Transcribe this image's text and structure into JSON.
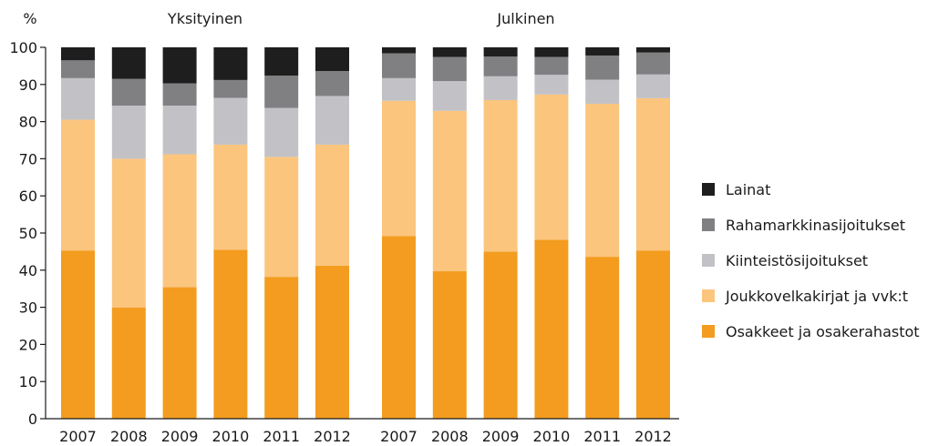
{
  "chart_data": {
    "type": "bar",
    "stacked": true,
    "unit_label": "%",
    "ylim": [
      0,
      100
    ],
    "yticks": [
      0,
      10,
      20,
      30,
      40,
      50,
      60,
      70,
      80,
      90,
      100
    ],
    "legend_position": "right",
    "grid": false,
    "colors": {
      "Osakkeet ja osakerahastot": "#f39c1f",
      "Joukkovelkakirjat ja vvk:t": "#fbc57e",
      "Kiinteistösijoitukset": "#c2c2c6",
      "Rahamarkkinasijoitukset": "#808083",
      "Lainat": "#1e1e1e"
    },
    "series_order": [
      "Osakkeet ja osakerahastot",
      "Joukkovelkakirjat ja vvk:t",
      "Kiinteistösijoitukset",
      "Rahamarkkinasijoitukset",
      "Lainat"
    ],
    "legend": [
      "Lainat",
      "Rahamarkkinasijoitukset",
      "Kiinteistösijoitukset",
      "Joukkovelkakirjat ja vvk:t",
      "Osakkeet ja osakerahastot"
    ],
    "groups": [
      {
        "title": "Yksityinen",
        "categories": [
          "2007",
          "2008",
          "2009",
          "2010",
          "2011",
          "2012"
        ],
        "series": [
          {
            "name": "Osakkeet ja osakerahastot",
            "values": [
              45.3,
              29.9,
              35.4,
              45.5,
              38.2,
              41.2
            ]
          },
          {
            "name": "Joukkovelkakirjat ja vvk:t",
            "values": [
              35.2,
              40.1,
              35.8,
              28.3,
              32.3,
              32.6
            ]
          },
          {
            "name": "Kiinteistösijoitukset",
            "values": [
              11.2,
              14.3,
              13.1,
              12.6,
              13.2,
              13.1
            ]
          },
          {
            "name": "Rahamarkkinasijoitukset",
            "values": [
              4.8,
              7.2,
              6.0,
              4.8,
              8.7,
              6.7
            ]
          },
          {
            "name": "Lainat",
            "values": [
              3.5,
              8.5,
              9.7,
              8.8,
              7.6,
              6.4
            ]
          }
        ]
      },
      {
        "title": "Julkinen",
        "categories": [
          "2007",
          "2008",
          "2009",
          "2010",
          "2011",
          "2012"
        ],
        "series": [
          {
            "name": "Osakkeet ja osakerahastot",
            "values": [
              49.2,
              39.7,
              45.0,
              48.2,
              43.6,
              45.3
            ]
          },
          {
            "name": "Joukkovelkakirjat ja vvk:t",
            "values": [
              36.4,
              43.2,
              40.8,
              39.1,
              41.2,
              41.0
            ]
          },
          {
            "name": "Kiinteistösijoitukset",
            "values": [
              6.1,
              8.0,
              6.4,
              5.3,
              6.5,
              6.4
            ]
          },
          {
            "name": "Rahamarkkinasijoitukset",
            "values": [
              6.7,
              6.5,
              5.3,
              4.8,
              6.5,
              5.9
            ]
          },
          {
            "name": "Lainat",
            "values": [
              1.6,
              2.6,
              2.5,
              2.6,
              2.2,
              1.4
            ]
          }
        ]
      }
    ]
  }
}
